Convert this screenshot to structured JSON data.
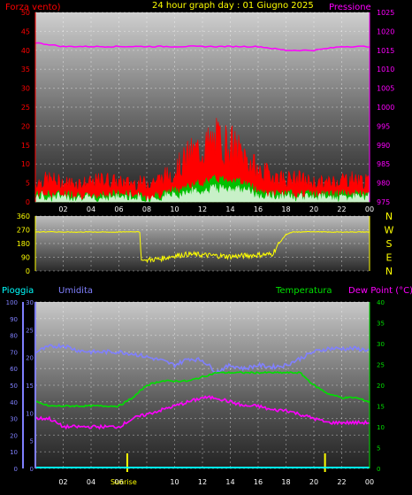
{
  "colors": {
    "wind": "#ff0000",
    "gust_fill": "#ff0000",
    "wind_avg": "#00c000",
    "wind_light": "#c8f0c8",
    "pressure": "#ff00ff",
    "direction": "#ffff00",
    "rain": "#00ffff",
    "humidity": "#8080ff",
    "temperature": "#00e000",
    "dewpoint": "#ff00ff",
    "title": "#ffff00",
    "sun": "#ffff00"
  },
  "chart_data": [
    {
      "type": "line",
      "title": "24 hour graph day : 01 Giugno 2025",
      "left_label": "Forza vento)",
      "right_label": "Pressione",
      "x_ticks": [
        "02",
        "04",
        "06",
        "08",
        "10",
        "12",
        "14",
        "16",
        "18",
        "20",
        "22",
        "00"
      ],
      "y_left_ticks": [
        0,
        5,
        10,
        15,
        20,
        25,
        30,
        35,
        40,
        45,
        50
      ],
      "ylim_left": [
        0,
        50
      ],
      "y_right_ticks": [
        975,
        980,
        985,
        990,
        995,
        1000,
        1005,
        1010,
        1015,
        1020,
        1025
      ],
      "ylim_right": [
        975,
        1025
      ],
      "series": [
        {
          "name": "Forza vento)",
          "note_role": "gust",
          "x": [
            0,
            1,
            2,
            3,
            4,
            5,
            6,
            7,
            8,
            9,
            10,
            11,
            12,
            13,
            14,
            15,
            16,
            17,
            18,
            19,
            20,
            21,
            22,
            23,
            24
          ],
          "values": [
            5,
            6,
            5,
            5,
            5,
            6,
            5,
            5,
            5,
            6,
            8,
            12,
            14,
            16,
            15,
            12,
            8,
            7,
            6,
            6,
            5,
            5,
            6,
            6,
            5
          ]
        },
        {
          "name": "",
          "note_role": "average",
          "x": [
            0,
            1,
            2,
            3,
            4,
            5,
            6,
            7,
            8,
            9,
            10,
            11,
            12,
            13,
            14,
            15,
            16,
            17,
            18,
            19,
            20,
            21,
            22,
            23,
            24
          ],
          "values": [
            2,
            2,
            2,
            2,
            1,
            2,
            2,
            2,
            1,
            2,
            3,
            4,
            5,
            6,
            6,
            5,
            3,
            2,
            2,
            2,
            2,
            2,
            2,
            2,
            2
          ]
        },
        {
          "name": "Pressione",
          "x": [
            0,
            2,
            4,
            6,
            8,
            10,
            12,
            14,
            16,
            18,
            20,
            22,
            24
          ],
          "values": [
            1017,
            1016,
            1016,
            1016,
            1016,
            1016,
            1016,
            1016,
            1016,
            1015,
            1015,
            1016,
            1016
          ]
        }
      ]
    },
    {
      "type": "line",
      "y_left_ticks": [
        0,
        90,
        180,
        270,
        360
      ],
      "ylim_left": [
        0,
        360
      ],
      "dir_labels": [
        "N",
        "W",
        "S",
        "E",
        "N"
      ],
      "series": [
        {
          "name": "",
          "x": [
            0,
            1,
            2,
            3,
            4,
            5,
            6,
            7,
            7.5,
            7.6,
            8,
            9,
            10,
            11,
            12,
            13,
            14,
            15,
            16,
            17,
            17.5,
            18,
            18.5,
            19,
            20,
            21,
            22,
            23,
            24
          ],
          "values": [
            255,
            258,
            255,
            255,
            256,
            255,
            255,
            258,
            255,
            70,
            72,
            80,
            100,
            110,
            105,
            100,
            95,
            100,
            105,
            110,
            180,
            240,
            255,
            255,
            258,
            255,
            255,
            256,
            255
          ]
        }
      ]
    },
    {
      "type": "line",
      "labels": {
        "rain": "Pioggia",
        "humidity": "Umidita",
        "temperature": "Temperatura",
        "dewpoint": "Dew Point (°C)"
      },
      "x_ticks": [
        "02",
        "04",
        "06",
        "08",
        "10",
        "12",
        "14",
        "16",
        "18",
        "20",
        "22",
        "00"
      ],
      "rain_ticks": [
        0,
        10,
        20,
        30,
        40,
        50,
        60,
        70,
        80,
        90,
        100
      ],
      "rain_lim": [
        0,
        100
      ],
      "hum_ticks": [
        0,
        5,
        10,
        15,
        20,
        25,
        30
      ],
      "hum_lim": [
        0,
        30
      ],
      "temp_ticks": [
        0,
        5,
        10,
        15,
        20,
        25,
        30,
        35,
        40
      ],
      "temp_lim": [
        0,
        40
      ],
      "sunrise_label": "Sunrise",
      "sunrise_hour": 6.6,
      "sunset_hour": 20.8,
      "series": [
        {
          "name": "Umidita",
          "x": [
            0,
            1,
            2,
            3,
            4,
            5,
            6,
            7,
            8,
            9,
            10,
            11,
            12,
            13,
            14,
            15,
            16,
            17,
            18,
            19,
            20,
            21,
            22,
            23,
            24
          ],
          "values": [
            70,
            73,
            74,
            71,
            70,
            70,
            70,
            69,
            67,
            65,
            62,
            66,
            65,
            58,
            62,
            60,
            62,
            61,
            62,
            66,
            70,
            72,
            72,
            72,
            71
          ]
        },
        {
          "name": "Temperatura",
          "x": [
            0,
            1,
            2,
            3,
            4,
            5,
            6,
            7,
            8,
            9,
            10,
            11,
            12,
            13,
            14,
            15,
            16,
            17,
            18,
            19,
            20,
            21,
            22,
            23,
            24
          ],
          "values": [
            16,
            15,
            15,
            15,
            15,
            15,
            15,
            17,
            20,
            21,
            21,
            21,
            22,
            23,
            23,
            23,
            23,
            23,
            23,
            23,
            20,
            18,
            17,
            17,
            16
          ]
        },
        {
          "name": "Dew Point (°C)",
          "x": [
            0,
            1,
            2,
            3,
            4,
            5,
            6,
            7,
            8,
            9,
            10,
            11,
            12,
            13,
            14,
            15,
            16,
            17,
            18,
            19,
            20,
            21,
            22,
            23,
            24
          ],
          "values": [
            12,
            12,
            10,
            10,
            10,
            10,
            10,
            12,
            13,
            14,
            15,
            16,
            17,
            17,
            16,
            15,
            15,
            14,
            14,
            13,
            12,
            11,
            11,
            11,
            11
          ]
        },
        {
          "name": "Pioggia",
          "x": [
            0,
            24
          ],
          "values": [
            0,
            0
          ]
        }
      ]
    }
  ]
}
